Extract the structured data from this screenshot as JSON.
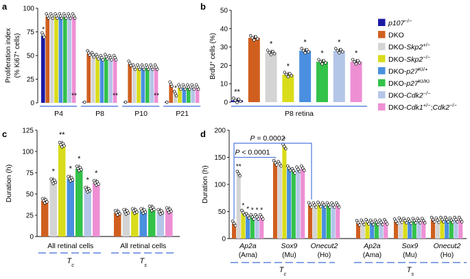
{
  "colors": [
    "#1a1aa6",
    "#d05f1f",
    "#d4d4d4",
    "#d9dc1a",
    "#4a8fe0",
    "#33c24a",
    "#b4c6e8",
    "#ee8fd4"
  ],
  "legend": {
    "items": [
      {
        "pre": "",
        "it": "p107",
        "sup": "−/−"
      },
      {
        "pre": "DKO",
        "it": "",
        "sup": ""
      },
      {
        "pre": "DKO-",
        "it": "Skp2",
        "sup": "+/−"
      },
      {
        "pre": "DKO-",
        "it": "Skp2",
        "sup": "−/−"
      },
      {
        "pre": "DKO-",
        "it": "p27",
        "sup": "KI/+"
      },
      {
        "pre": "DKO-",
        "it": "p27",
        "sup": "KI/KI"
      },
      {
        "pre": "DKO-",
        "it": "Cdk2",
        "sup": "−/−"
      },
      {
        "pre": "DKO-",
        "it": "Cdk1",
        "sup": "+/−",
        "pre2": ";",
        "it2": "Cdk2",
        "sup2": "−/−"
      }
    ]
  },
  "chart_data": [
    {
      "panel": "a",
      "type": "bar",
      "ylabel": "Proliferation index",
      "ylabel2_pre": "(% Ki67",
      "ylabel2_sup": "+",
      "ylabel2_post": " cells)",
      "ylim": [
        0,
        100
      ],
      "yticks": [
        0,
        25,
        50,
        75,
        100
      ],
      "groups": [
        "P4",
        "P8",
        "P10",
        "P21"
      ],
      "values": [
        [
          71,
          91,
          91,
          91,
          91,
          91,
          91,
          91
        ],
        [
          1,
          52,
          50,
          48,
          47,
          48,
          47,
          47
        ],
        [
          1,
          41,
          37,
          37,
          37,
          37,
          37,
          37
        ],
        [
          1,
          19,
          9,
          16,
          16,
          16,
          16,
          16
        ]
      ],
      "marks": [
        {
          "group": 0,
          "bar": 0,
          "text": "*"
        },
        {
          "group": 1,
          "bar": 0,
          "text": "**"
        },
        {
          "group": 2,
          "bar": 0,
          "text": "**"
        },
        {
          "group": 3,
          "bar": 0,
          "text": "**"
        },
        {
          "group": 3,
          "bar": 2,
          "text": "*"
        }
      ]
    },
    {
      "panel": "b",
      "type": "bar",
      "ylabel_pre": "BrdU",
      "ylabel_sup": "+",
      "ylabel_post": " cells (%)",
      "ylim": [
        0,
        50
      ],
      "yticks": [
        0,
        10,
        20,
        30,
        40,
        50
      ],
      "xlabel": "P8 retina",
      "values": [
        1,
        35,
        27,
        15,
        28,
        22,
        28,
        22
      ],
      "marks": [
        "**",
        "",
        "*",
        "*",
        "*",
        "*",
        "*",
        "*"
      ]
    },
    {
      "panel": "c",
      "type": "bar",
      "ylabel": "Duration (h)",
      "ylim": [
        0,
        125
      ],
      "yticks": [
        0,
        25,
        50,
        75,
        100,
        125
      ],
      "groups": [
        {
          "label": "All retinal cells",
          "sub": "T",
          "subscript": "c",
          "values": [
            42,
            65,
            108,
            68,
            80,
            55,
            63
          ],
          "marks": [
            "",
            "*",
            "**",
            "*",
            "*",
            "*",
            "*"
          ]
        },
        {
          "label": "All retinal cells",
          "sub": "T",
          "subscript": "s",
          "values": [
            28,
            29,
            30,
            30,
            33,
            29,
            31
          ],
          "marks": [
            "",
            "",
            "",
            "",
            "",
            "",
            ""
          ]
        }
      ]
    },
    {
      "panel": "d",
      "type": "bar",
      "ylabel": "Duration (h)",
      "ylim": [
        0,
        200
      ],
      "yticks": [
        0,
        50,
        100,
        150,
        200
      ],
      "pvals": [
        {
          "text": "P = 0.0002"
        },
        {
          "text": "P < 0.0001"
        }
      ],
      "groups": [
        {
          "label": "Ap2a",
          "cell": "(Ama)",
          "values": [
            28,
            120,
            48,
            42,
            40,
            40,
            40
          ],
          "marks": [
            "",
            "**",
            "*",
            "*",
            "*",
            "*",
            "*"
          ]
        },
        {
          "label": "Sox9",
          "cell": "(Mu)",
          "values": [
            140,
            138,
            170,
            130,
            125,
            128,
            130
          ],
          "marks": [
            "",
            "",
            "*",
            "",
            "",
            "",
            ""
          ]
        },
        {
          "label": "Onecut2",
          "cell": "(Ho)",
          "values": [
            62,
            62,
            63,
            62,
            62,
            62,
            62
          ],
          "marks": [
            "",
            "",
            "",
            "",
            "",
            "",
            ""
          ]
        },
        {
          "label": "Ap2a",
          "cell": "(Ama)",
          "values": [
            29,
            30,
            31,
            30,
            30,
            30,
            31
          ],
          "marks": [
            "",
            "",
            "",
            "",
            "",
            "",
            ""
          ]
        },
        {
          "label": "Sox9",
          "cell": "(Mu)",
          "values": [
            32,
            34,
            33,
            32,
            33,
            33,
            33
          ],
          "marks": [
            "",
            "",
            "",
            "",
            "",
            "",
            ""
          ]
        },
        {
          "label": "Onecut2",
          "cell": "(Ho)",
          "values": [
            35,
            34,
            35,
            35,
            34,
            35,
            35
          ],
          "marks": [
            "",
            "",
            "",
            "",
            "",
            "",
            ""
          ]
        }
      ],
      "bottom_labels": [
        {
          "sub": "T",
          "subscript": "c"
        },
        {
          "sub": "T",
          "subscript": "s"
        }
      ]
    }
  ]
}
